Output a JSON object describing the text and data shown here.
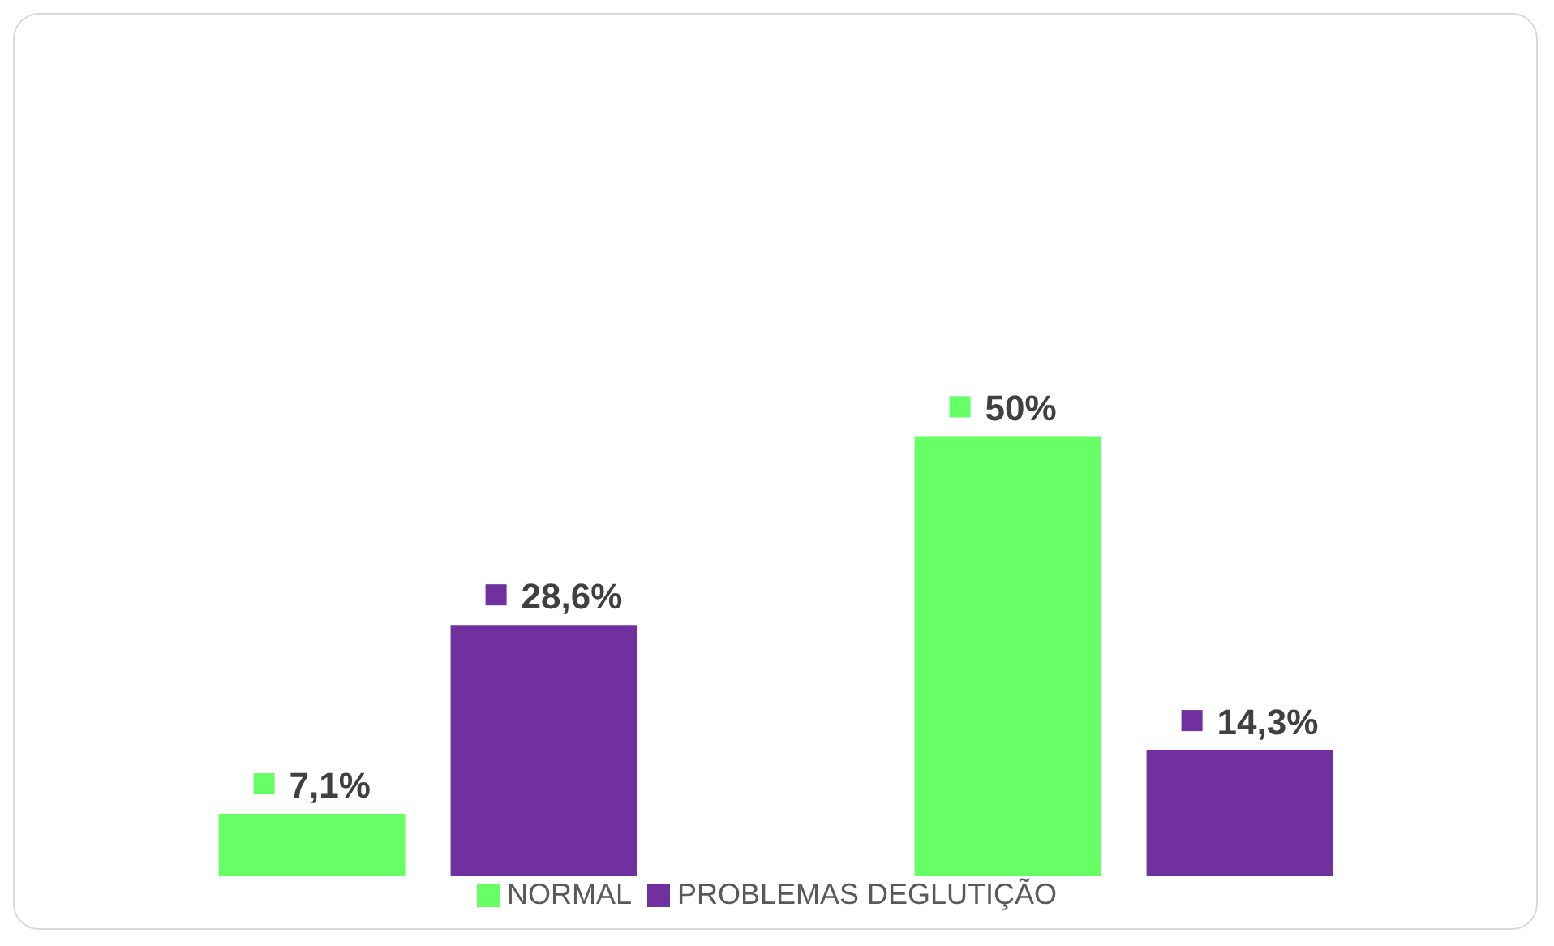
{
  "chart_data": {
    "type": "bar",
    "categories": [
      null,
      null
    ],
    "series": [
      {
        "name": "NORMAL",
        "color": "#66ff66",
        "values": [
          7.1,
          50
        ],
        "value_labels": [
          "7,1%",
          "50%"
        ]
      },
      {
        "name": "PROBLEMAS DEGLUTIÇÃO",
        "color": "#7030a0",
        "values": [
          28.6,
          14.3
        ],
        "value_labels": [
          "28,6%",
          "14,3%"
        ]
      }
    ],
    "legend": "bottom",
    "grid": false
  }
}
